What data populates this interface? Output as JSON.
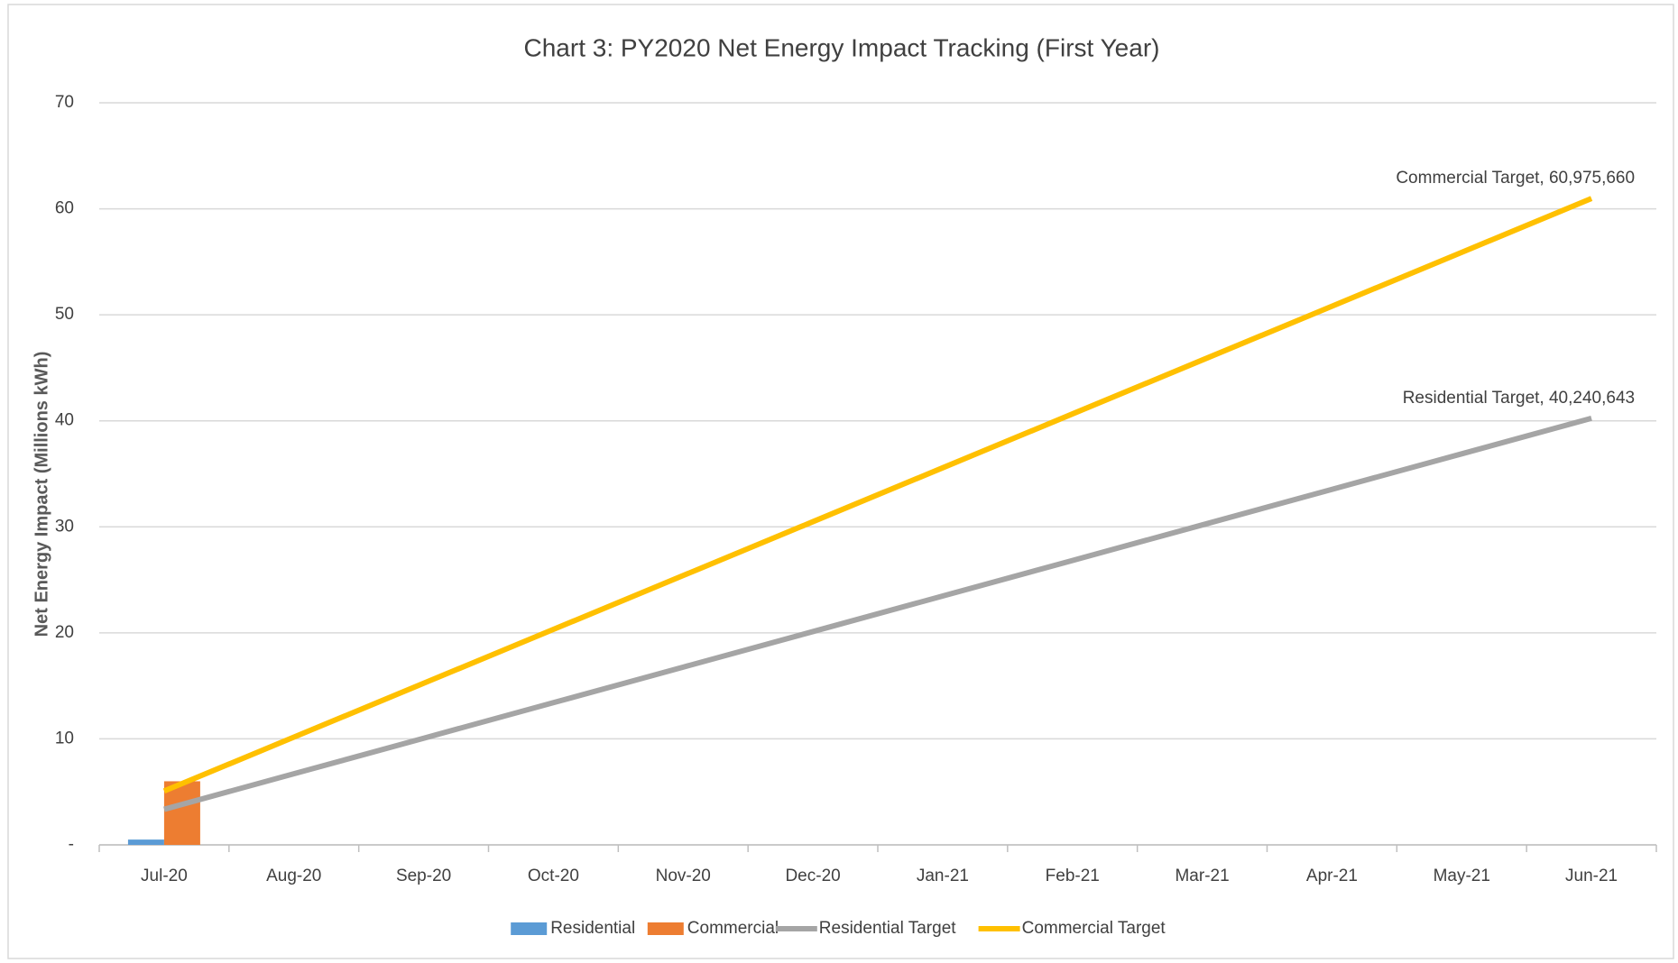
{
  "chart_data": {
    "type": "combo",
    "title": "Chart 3: PY2020 Net Energy Impact Tracking (First Year)",
    "y_label": "Net Energy Impact (Millions kWh)",
    "categories": [
      "Jul-20",
      "Aug-20",
      "Sep-20",
      "Oct-20",
      "Nov-20",
      "Dec-20",
      "Jan-21",
      "Feb-21",
      "Mar-21",
      "Apr-21",
      "May-21",
      "Jun-21"
    ],
    "series": [
      {
        "name": "Residential",
        "type": "bar",
        "color": "#5b9bd5",
        "values": [
          0.5,
          null,
          null,
          null,
          null,
          null,
          null,
          null,
          null,
          null,
          null,
          null
        ]
      },
      {
        "name": "Commercial",
        "type": "bar",
        "color": "#ed7d31",
        "values": [
          6.0,
          null,
          null,
          null,
          null,
          null,
          null,
          null,
          null,
          null,
          null,
          null
        ]
      },
      {
        "name": "Residential Target",
        "type": "line",
        "color": "#a5a5a5",
        "values": [
          3.353,
          6.707,
          10.06,
          13.414,
          16.767,
          20.12,
          23.474,
          26.827,
          30.18,
          33.534,
          36.887,
          40.240643
        ],
        "value_labels": [
          null,
          null,
          null,
          null,
          null,
          null,
          null,
          null,
          null,
          null,
          null,
          "Residential Target,  40,240,643"
        ]
      },
      {
        "name": "Commercial Target",
        "type": "line",
        "color": "#ffc000",
        "values": [
          5.081,
          10.163,
          15.244,
          20.325,
          25.407,
          30.488,
          35.569,
          40.65,
          45.732,
          50.813,
          55.894,
          60.97566
        ],
        "value_labels": [
          null,
          null,
          null,
          null,
          null,
          null,
          null,
          null,
          null,
          null,
          null,
          "Commercial Target,  60,975,660"
        ]
      }
    ],
    "ylim": [
      0,
      70
    ],
    "yticks": [
      {
        "value": 0,
        "label": "-"
      },
      10,
      20,
      30,
      40,
      50,
      60,
      70
    ],
    "grid": true,
    "legend": "bottom"
  }
}
